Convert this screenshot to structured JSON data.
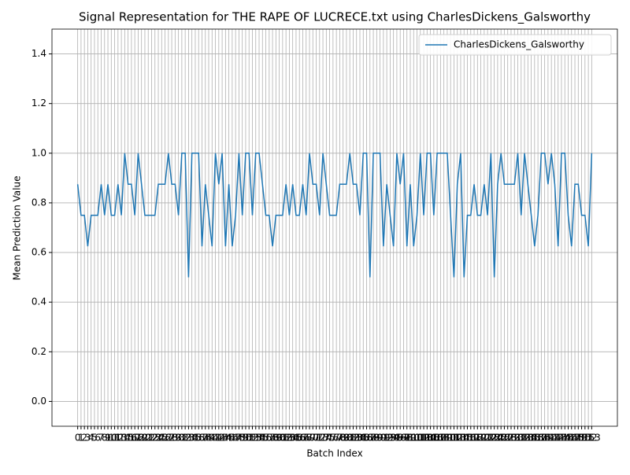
{
  "chart_data": {
    "type": "line",
    "title": "Signal Representation for THE RAPE OF LUCRECE.txt using CharlesDickens_Galsworthy",
    "x_label": "Batch Index",
    "y_label": "Mean Prediction Value",
    "x": [
      0,
      1,
      2,
      3,
      4,
      5,
      6,
      7,
      8,
      9,
      10,
      11,
      12,
      13,
      14,
      15,
      16,
      17,
      18,
      19,
      20,
      21,
      22,
      23,
      24,
      25,
      26,
      27,
      28,
      29,
      30,
      31,
      32,
      33,
      34,
      35,
      36,
      37,
      38,
      39,
      40,
      41,
      42,
      43,
      44,
      45,
      46,
      47,
      48,
      49,
      50,
      51,
      52,
      53,
      54,
      55,
      56,
      57,
      58,
      59,
      60,
      61,
      62,
      63,
      64,
      65,
      66,
      67,
      68,
      69,
      70,
      71,
      72,
      73,
      74,
      75,
      76,
      77,
      78,
      79,
      80,
      81,
      82,
      83,
      84,
      85,
      86,
      87,
      88,
      89,
      90,
      91,
      92,
      93,
      94,
      95,
      96,
      97,
      98,
      99,
      100,
      101,
      102,
      103,
      104,
      105,
      106,
      107,
      108,
      109,
      110,
      111,
      112,
      113,
      114,
      115,
      116,
      117,
      118,
      119,
      120,
      121,
      122,
      123,
      124,
      125,
      126,
      127,
      128,
      129,
      130,
      131,
      132,
      133,
      134,
      135,
      136,
      137,
      138,
      139,
      140,
      141,
      142,
      143,
      144,
      145,
      146,
      147,
      148,
      149,
      150,
      151,
      152,
      153
    ],
    "series": [
      {
        "name": "CharlesDickens_Galsworthy",
        "color": "#1f77b4",
        "values": [
          0.875,
          0.75,
          0.75,
          0.625,
          0.75,
          0.75,
          0.75,
          0.875,
          0.75,
          0.875,
          0.75,
          0.75,
          0.875,
          0.75,
          1.0,
          0.875,
          0.875,
          0.75,
          1.0,
          0.875,
          0.75,
          0.75,
          0.75,
          0.75,
          0.875,
          0.875,
          0.875,
          1.0,
          0.875,
          0.875,
          0.75,
          1.0,
          1.0,
          0.5,
          1.0,
          1.0,
          1.0,
          0.625,
          0.875,
          0.75,
          0.625,
          1.0,
          0.875,
          1.0,
          0.625,
          0.875,
          0.625,
          0.75,
          1.0,
          0.75,
          1.0,
          1.0,
          0.75,
          1.0,
          1.0,
          0.875,
          0.75,
          0.75,
          0.625,
          0.75,
          0.75,
          0.75,
          0.875,
          0.75,
          0.875,
          0.75,
          0.75,
          0.875,
          0.75,
          1.0,
          0.875,
          0.875,
          0.75,
          1.0,
          0.875,
          0.75,
          0.75,
          0.75,
          0.875,
          0.875,
          0.875,
          1.0,
          0.875,
          0.875,
          0.75,
          1.0,
          1.0,
          0.5,
          1.0,
          1.0,
          1.0,
          0.625,
          0.875,
          0.75,
          0.625,
          1.0,
          0.875,
          1.0,
          0.625,
          0.875,
          0.625,
          0.75,
          1.0,
          0.75,
          1.0,
          1.0,
          0.75,
          1.0,
          1.0,
          1.0,
          1.0,
          0.75,
          0.5,
          0.875,
          1.0,
          0.5,
          0.75,
          0.75,
          0.875,
          0.75,
          0.75,
          0.875,
          0.75,
          1.0,
          0.5,
          0.875,
          1.0,
          0.875,
          0.875,
          0.875,
          0.875,
          1.0,
          0.75,
          1.0,
          0.875,
          0.75,
          0.625,
          0.75,
          1.0,
          1.0,
          0.875,
          1.0,
          0.875,
          0.625,
          1.0,
          1.0,
          0.75,
          0.625,
          0.875,
          0.875,
          0.75,
          0.75,
          0.625,
          1.0
        ]
      }
    ],
    "xlim": [
      -7.65,
      160.65
    ],
    "ylim": [
      -0.1,
      1.5
    ],
    "xticks": [
      0,
      1,
      2,
      3,
      4,
      5,
      6,
      7,
      8,
      9,
      10,
      11,
      12,
      13,
      14,
      15,
      16,
      17,
      18,
      19,
      20,
      21,
      22,
      23,
      24,
      25,
      26,
      27,
      28,
      29,
      30,
      31,
      32,
      33,
      34,
      35,
      36,
      37,
      38,
      39,
      40,
      41,
      42,
      43,
      44,
      45,
      46,
      47,
      48,
      49,
      50,
      51,
      52,
      53,
      54,
      55,
      56,
      57,
      58,
      59,
      60,
      61,
      62,
      63,
      64,
      65,
      66,
      67,
      68,
      69,
      70,
      71,
      72,
      73,
      74,
      75,
      76,
      77,
      78,
      79,
      80,
      81,
      82,
      83,
      84,
      85,
      86,
      87,
      88,
      89,
      90,
      91,
      92,
      93,
      94,
      95,
      96,
      97,
      98,
      99,
      100,
      101,
      102,
      103,
      104,
      105,
      106,
      107,
      108,
      109,
      110,
      111,
      112,
      113,
      114,
      115,
      116,
      117,
      118,
      119,
      120,
      121,
      122,
      123,
      124,
      125,
      126,
      127,
      128,
      129,
      130,
      131,
      132,
      133,
      134,
      135,
      136,
      137,
      138,
      139,
      140,
      141,
      142,
      143,
      144,
      145,
      146,
      147,
      148,
      149,
      150,
      151,
      152,
      153
    ],
    "yticks": [
      {
        "value": 0,
        "label": "0.0"
      },
      {
        "value": 0.2,
        "label": "0.2"
      },
      {
        "value": 0.4,
        "label": "0.4"
      },
      {
        "value": 0.6,
        "label": "0.6"
      },
      {
        "value": 0.8,
        "label": "0.8"
      },
      {
        "value": 1.0,
        "label": "1.0"
      },
      {
        "value": 1.2,
        "label": "1.2"
      },
      {
        "value": 1.4,
        "label": "1.4"
      }
    ],
    "grid": true,
    "legend": "upper right"
  }
}
